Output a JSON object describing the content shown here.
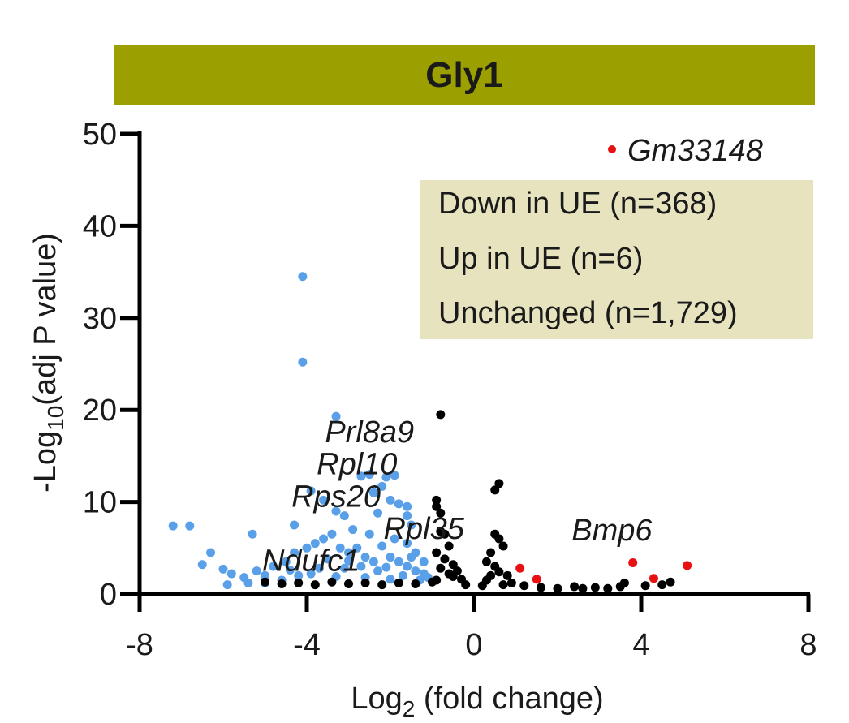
{
  "chart_data": {
    "type": "scatter",
    "title": "Gly1",
    "xlabel": "Log2 (fold change)",
    "xlabel_main": "Log",
    "xlabel_sub": "2",
    "xlabel_rest": " (fold change)",
    "ylabel_main": "-Log",
    "ylabel_sub": "10",
    "ylabel_rest": "(adj P value)",
    "xlim": [
      -8,
      8
    ],
    "ylim": [
      0,
      50
    ],
    "x_ticks": [
      -8,
      -4,
      0,
      4,
      8
    ],
    "y_ticks": [
      0,
      10,
      20,
      30,
      40,
      50
    ],
    "legend": [
      "Down in UE (n=368)",
      "Up in UE (n=6)",
      "Unchanged (n=1,729)"
    ],
    "colors": {
      "down": "#5aa0e8",
      "up": "#e81010",
      "unchanged": "#000000",
      "title_bar": "#9c9f00",
      "legend_bg": "#e6e3be"
    },
    "series": [
      {
        "name": "Down in UE (n=368)",
        "color": "#5aa0e8",
        "points": [
          [
            -4.1,
            34.5
          ],
          [
            -4.1,
            25.2
          ],
          [
            -3.3,
            19.3
          ],
          [
            -7.2,
            7.4
          ],
          [
            -6.8,
            7.4
          ],
          [
            -6.3,
            4.5
          ],
          [
            -5.3,
            6.5
          ],
          [
            -4.3,
            7.5
          ],
          [
            -3.9,
            11.2
          ],
          [
            -3.6,
            10.2
          ],
          [
            -3.3,
            9.0
          ],
          [
            -3.1,
            8.5
          ],
          [
            -2.7,
            12.8
          ],
          [
            -2.5,
            13.0
          ],
          [
            -2.1,
            12.7
          ],
          [
            -1.9,
            12.9
          ],
          [
            -2.2,
            11.7
          ],
          [
            -2.4,
            11.0
          ],
          [
            -2.0,
            10.2
          ],
          [
            -1.8,
            9.8
          ],
          [
            -1.6,
            9.5
          ],
          [
            -2.3,
            8.8
          ],
          [
            -1.6,
            8.5
          ],
          [
            -1.5,
            7.5
          ],
          [
            -6.5,
            3.2
          ],
          [
            -6.0,
            2.7
          ],
          [
            -5.8,
            2.2
          ],
          [
            -5.5,
            1.8
          ],
          [
            -5.2,
            2.5
          ],
          [
            -5.0,
            2.0
          ],
          [
            -4.8,
            3.0
          ],
          [
            -4.5,
            3.5
          ],
          [
            -4.3,
            4.5
          ],
          [
            -4.0,
            5.0
          ],
          [
            -3.8,
            5.5
          ],
          [
            -3.6,
            6.0
          ],
          [
            -3.4,
            6.5
          ],
          [
            -3.2,
            5.0
          ],
          [
            -3.0,
            4.5
          ],
          [
            -2.8,
            5.0
          ],
          [
            -2.6,
            4.0
          ],
          [
            -2.4,
            3.5
          ],
          [
            -2.2,
            5.2
          ],
          [
            -2.0,
            4.0
          ],
          [
            -1.8,
            3.5
          ],
          [
            -1.6,
            3.0
          ],
          [
            -1.4,
            2.5
          ],
          [
            -1.2,
            2.2
          ],
          [
            -1.1,
            1.8
          ],
          [
            -1.2,
            3.5
          ],
          [
            -1.4,
            4.5
          ],
          [
            -1.6,
            5.5
          ],
          [
            -1.9,
            6.0
          ],
          [
            -2.5,
            6.5
          ],
          [
            -2.9,
            7.0
          ],
          [
            -3.5,
            3.8
          ],
          [
            -3.7,
            2.8
          ],
          [
            -3.9,
            2.2
          ],
          [
            -4.2,
            2.0
          ],
          [
            -4.6,
            1.5
          ],
          [
            -5.0,
            1.2
          ],
          [
            -5.4,
            1.2
          ],
          [
            -5.9,
            1.0
          ],
          [
            -2.3,
            2.5
          ],
          [
            -2.7,
            3.0
          ],
          [
            -3.1,
            2.8
          ],
          [
            -1.7,
            2.0
          ],
          [
            -1.3,
            1.5
          ],
          [
            -2.0,
            1.6
          ],
          [
            -2.6,
            1.8
          ],
          [
            -3.3,
            1.9
          ],
          [
            -4.4,
            2.6
          ],
          [
            -3.0,
            3.6
          ],
          [
            -2.1,
            2.9
          ],
          [
            -1.5,
            4.0
          ]
        ]
      },
      {
        "name": "Up in UE (n=6)",
        "color": "#e81010",
        "points": [
          [
            1.1,
            2.8
          ],
          [
            1.5,
            1.6
          ],
          [
            3.8,
            3.4
          ],
          [
            4.3,
            1.7
          ],
          [
            5.1,
            3.1
          ],
          [
            3.3,
            48.0
          ]
        ]
      },
      {
        "name": "Unchanged (n=1,729)",
        "color": "#000000",
        "points": [
          [
            -0.8,
            19.5
          ],
          [
            -0.9,
            10.2
          ],
          [
            -0.9,
            9.5
          ],
          [
            -0.8,
            8.8
          ],
          [
            -0.8,
            6.8
          ],
          [
            -0.7,
            6.5
          ],
          [
            -0.6,
            5.2
          ],
          [
            -0.9,
            4.5
          ],
          [
            -0.7,
            3.8
          ],
          [
            -0.5,
            3.2
          ],
          [
            -0.4,
            2.5
          ],
          [
            -0.3,
            1.6
          ],
          [
            -0.2,
            1.0
          ],
          [
            -0.6,
            2.2
          ],
          [
            -0.9,
            1.5
          ],
          [
            0.6,
            12.0
          ],
          [
            0.5,
            11.3
          ],
          [
            0.5,
            6.5
          ],
          [
            0.6,
            6.0
          ],
          [
            0.7,
            5.2
          ],
          [
            0.4,
            4.5
          ],
          [
            0.3,
            3.5
          ],
          [
            0.5,
            3.0
          ],
          [
            0.6,
            2.4
          ],
          [
            0.8,
            2.0
          ],
          [
            0.3,
            1.5
          ],
          [
            0.2,
            0.9
          ],
          [
            0.9,
            1.2
          ],
          [
            1.2,
            0.9
          ],
          [
            1.6,
            0.7
          ],
          [
            2.0,
            0.6
          ],
          [
            2.4,
            0.8
          ],
          [
            2.6,
            0.6
          ],
          [
            2.9,
            0.7
          ],
          [
            3.2,
            0.6
          ],
          [
            3.5,
            0.8
          ],
          [
            3.6,
            1.2
          ],
          [
            4.1,
            0.9
          ],
          [
            4.5,
            1.0
          ],
          [
            4.7,
            1.3
          ],
          [
            -5.0,
            1.3
          ],
          [
            -4.6,
            1.1
          ],
          [
            -4.2,
            1.2
          ],
          [
            -3.8,
            1.0
          ],
          [
            -3.4,
            1.3
          ],
          [
            -3.0,
            1.1
          ],
          [
            -2.6,
            1.2
          ],
          [
            -2.2,
            1.0
          ],
          [
            -1.8,
            1.2
          ],
          [
            -1.4,
            1.1
          ],
          [
            -1.0,
            1.3
          ],
          [
            -0.8,
            2.8
          ],
          [
            -0.5,
            1.9
          ],
          [
            0.4,
            2.0
          ],
          [
            0.7,
            1.0
          ]
        ]
      }
    ],
    "annotations": [
      {
        "text": "Prl8a9",
        "x": -2.5,
        "y": 16.5
      },
      {
        "text": "Rpl10",
        "x": -2.8,
        "y": 13.0
      },
      {
        "text": "Rps20",
        "x": -3.3,
        "y": 9.5
      },
      {
        "text": "Rpl35",
        "x": -1.2,
        "y": 6.0
      },
      {
        "text": "Ndufc1",
        "x": -3.9,
        "y": 2.5
      },
      {
        "text": "Bmp6",
        "x": 3.3,
        "y": 5.8
      }
    ],
    "highlight_label": "Gm33148"
  }
}
